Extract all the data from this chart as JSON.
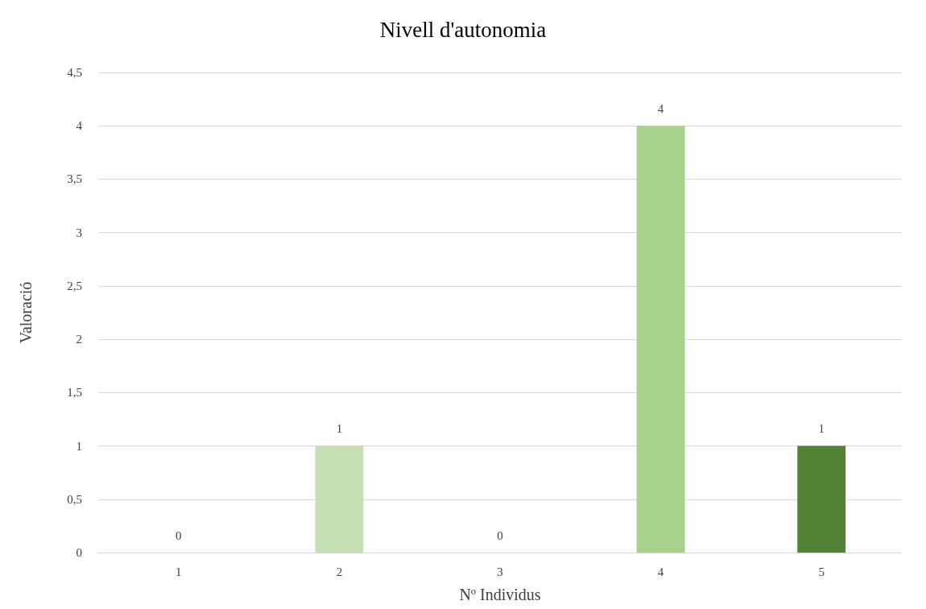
{
  "chart_data": {
    "type": "bar",
    "title": "Nivell d'autonomia",
    "xlabel": "Nº Individus",
    "ylabel": "Valoració",
    "categories": [
      "1",
      "2",
      "3",
      "4",
      "5"
    ],
    "values": [
      0,
      1,
      0,
      4,
      1
    ],
    "colors": [
      "#e2f0d9",
      "#c5e0b4",
      "#e2f0d9",
      "#a9d18e",
      "#548235"
    ],
    "ylim": [
      0,
      4.5
    ],
    "yticks": [
      0,
      {
        "value": 0.5,
        "label": "0,5"
      },
      1,
      {
        "value": 1.5,
        "label": "1,5"
      },
      2,
      {
        "value": 2.5,
        "label": "2,5"
      },
      3,
      {
        "value": 3.5,
        "label": "3,5"
      },
      4,
      {
        "value": 4.5,
        "label": "4,5"
      }
    ],
    "grid": "y",
    "data_labels": true
  }
}
